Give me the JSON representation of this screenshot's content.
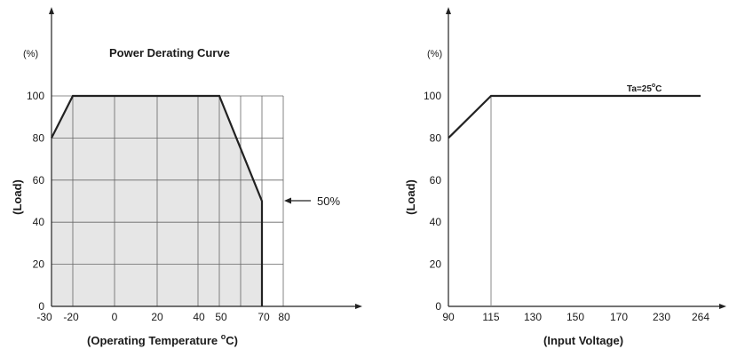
{
  "chart_data": [
    {
      "type": "area",
      "title": "Power Derating Curve",
      "y_unit": "(%)",
      "ylabel": "(Load)",
      "xlabel_prefix": "(Operating Temperature ",
      "xlabel_degree": "o",
      "xlabel_suffix": "C)",
      "x_tick_labels": [
        "-30",
        "-20",
        "0",
        "20",
        "40",
        "50",
        "70",
        "80"
      ],
      "y_tick_labels": [
        "0",
        "20",
        "40",
        "60",
        "80",
        "100"
      ],
      "x_gridlines": [
        -20,
        0,
        20,
        40,
        50,
        60,
        70,
        80
      ],
      "xlim": [
        -30,
        80
      ],
      "ylim": [
        0,
        100
      ],
      "grid": true,
      "fill": true,
      "x": [
        -30,
        -20,
        50,
        70,
        70
      ],
      "y": [
        80,
        100,
        100,
        50,
        0
      ],
      "annotation": {
        "text": "50%",
        "x": 70,
        "y": 50
      }
    },
    {
      "type": "line",
      "y_unit": "(%)",
      "ylabel": "(Load)",
      "xlabel": "(Input Voltage)",
      "x_tick_labels": [
        "90",
        "115",
        "130",
        "150",
        "170",
        "230",
        "264"
      ],
      "y_tick_labels": [
        "0",
        "20",
        "40",
        "60",
        "80",
        "100"
      ],
      "ylim": [
        0,
        100
      ],
      "grid": false,
      "x": [
        90,
        115,
        264
      ],
      "y": [
        80,
        100,
        100
      ],
      "annotation": {
        "text": "Ta=25",
        "superscript": "o",
        "suffix": "C"
      }
    }
  ]
}
